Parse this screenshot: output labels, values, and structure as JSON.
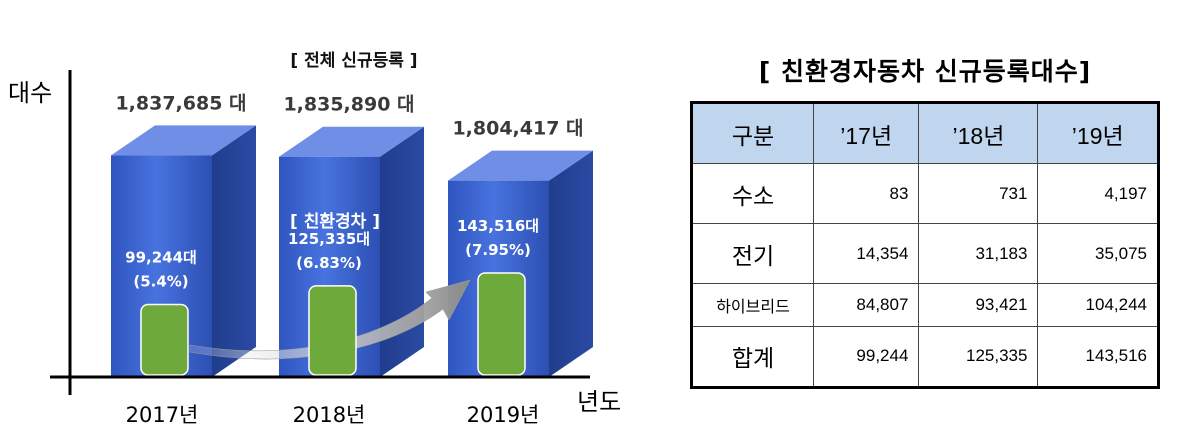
{
  "chart_data": {
    "type": "bar",
    "title": "[ 전체 신규등록 ]",
    "ylabel": "대수",
    "xlabel": "년도",
    "categories": [
      "2017년",
      "2018년",
      "2019년"
    ],
    "series": [
      {
        "values": [
          1837685,
          1835890,
          1804417
        ],
        "labels": [
          "1,837,685 대",
          "1,835,890 대",
          "1,804,417 대"
        ]
      },
      {
        "values": [
          99244,
          125335,
          143516
        ],
        "labels": [
          "99,244대",
          "125,335대",
          "143,516대"
        ],
        "shares": [
          "(5.4%)",
          "(6.83%)",
          "(7.95%)"
        ]
      }
    ],
    "annotation": "[ 친환경차 ]",
    "colors": {
      "total_bar": "#3b62cc",
      "eco_bar": "#6ea93c"
    }
  },
  "table": {
    "title": "[ 친환경자동차 신규등록대수]",
    "headers": [
      "구분",
      "’17년",
      "’18년",
      "’19년"
    ],
    "rows": [
      {
        "label": "수소",
        "values": [
          "83",
          "731",
          "4,197"
        ]
      },
      {
        "label": "전기",
        "values": [
          "14,354",
          "31,183",
          "35,075"
        ]
      },
      {
        "label": "하이브리드",
        "values": [
          "84,807",
          "93,421",
          "104,244"
        ]
      },
      {
        "label": "합계",
        "values": [
          "99,244",
          "125,335",
          "143,516"
        ]
      }
    ],
    "header_color": "#bfd6ee"
  }
}
